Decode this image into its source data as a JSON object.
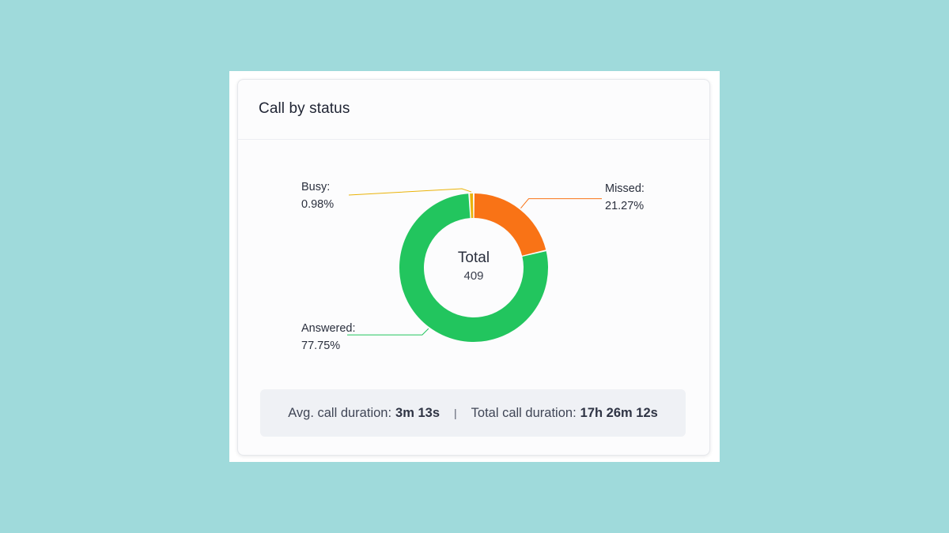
{
  "card": {
    "title": "Call by status"
  },
  "chart_data": {
    "type": "pie",
    "donut": true,
    "center": {
      "label": "Total",
      "value": "409"
    },
    "slices": [
      {
        "name": "Missed",
        "percent": 21.27,
        "percent_label": "21.27%",
        "color": "#f97316"
      },
      {
        "name": "Answered",
        "percent": 77.75,
        "percent_label": "77.75%",
        "color": "#22c55e"
      },
      {
        "name": "Busy",
        "percent": 0.98,
        "percent_label": "0.98%",
        "color": "#eab308"
      }
    ]
  },
  "summary": {
    "avg_label": "Avg. call duration:",
    "avg_value": "3m 13s",
    "separator": "|",
    "total_label": "Total call duration:",
    "total_value": "17h 26m 12s"
  }
}
